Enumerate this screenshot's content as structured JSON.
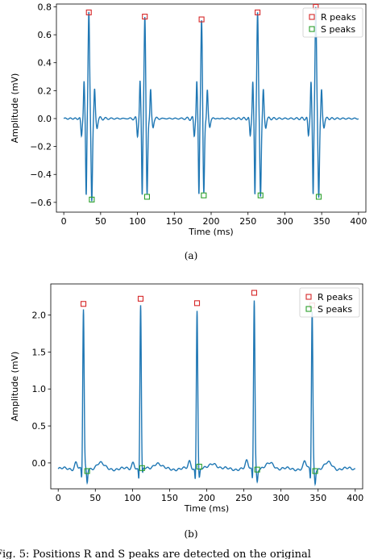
{
  "caption": "Fig. 5: Positions R and S peaks are detected on the original",
  "chart_data": [
    {
      "type": "line",
      "sublabel": "(a)",
      "xlabel": "Time (ms)",
      "ylabel": "Amplitude (mV)",
      "xlim": [
        -10,
        410
      ],
      "ylim": [
        -0.67,
        0.82
      ],
      "xticks": [
        0,
        50,
        100,
        150,
        200,
        250,
        300,
        350,
        400
      ],
      "yticks": [
        -0.6,
        -0.4,
        -0.2,
        0.0,
        0.2,
        0.4,
        0.6,
        0.8
      ],
      "ytick_labels": [
        "−0.6",
        "−0.4",
        "−0.2",
        "0.0",
        "0.2",
        "0.4",
        "0.6",
        "0.8"
      ],
      "legend_position": "top-right",
      "series": [
        {
          "name": "",
          "kind": "line",
          "color": "#1f77b4"
        },
        {
          "name": "R peaks",
          "kind": "marker",
          "color": "#d62728",
          "x": [
            34,
            110,
            187,
            263,
            342
          ],
          "y": [
            0.76,
            0.73,
            0.71,
            0.76,
            0.8
          ]
        },
        {
          "name": "S peaks",
          "kind": "marker",
          "color": "#2ca02c",
          "x": [
            38,
            113,
            190,
            267,
            346
          ],
          "y": [
            -0.58,
            -0.56,
            -0.55,
            -0.55,
            -0.56
          ]
        }
      ],
      "beats": [
        {
          "r_x": 34,
          "r_y": 0.76,
          "s_x": 38,
          "s_y": -0.58
        },
        {
          "r_x": 110,
          "r_y": 0.73,
          "s_x": 113,
          "s_y": -0.56
        },
        {
          "r_x": 187,
          "r_y": 0.71,
          "s_x": 190,
          "s_y": -0.55
        },
        {
          "r_x": 263,
          "r_y": 0.76,
          "s_x": 267,
          "s_y": -0.55
        },
        {
          "r_x": 342,
          "r_y": 0.8,
          "s_x": 346,
          "s_y": -0.56
        }
      ]
    },
    {
      "type": "line",
      "sublabel": "(b)",
      "xlabel": "Time (ms)",
      "ylabel": "Amplitude (mV)",
      "xlim": [
        -10,
        410
      ],
      "ylim": [
        -0.35,
        2.42
      ],
      "xticks": [
        0,
        50,
        100,
        150,
        200,
        250,
        300,
        350,
        400
      ],
      "yticks": [
        0.0,
        0.5,
        1.0,
        1.5,
        2.0
      ],
      "ytick_labels": [
        "0.0",
        "0.5",
        "1.0",
        "1.5",
        "2.0"
      ],
      "legend_position": "top-right",
      "series": [
        {
          "name": "",
          "kind": "line",
          "color": "#1f77b4"
        },
        {
          "name": "R peaks",
          "kind": "marker",
          "color": "#d62728",
          "x": [
            34,
            111,
            187,
            264,
            342
          ],
          "y": [
            2.15,
            2.22,
            2.16,
            2.3,
            2.13
          ]
        },
        {
          "name": "S peaks",
          "kind": "marker",
          "color": "#2ca02c",
          "x": [
            39,
            113,
            190,
            268,
            346
          ],
          "y": [
            -0.11,
            -0.07,
            -0.05,
            -0.09,
            -0.11
          ]
        }
      ],
      "beats": [
        {
          "r_x": 34,
          "r_y": 2.15,
          "s_x": 39,
          "s_y": -0.11
        },
        {
          "r_x": 111,
          "r_y": 2.22,
          "s_x": 113,
          "s_y": -0.07
        },
        {
          "r_x": 187,
          "r_y": 2.16,
          "s_x": 190,
          "s_y": -0.05
        },
        {
          "r_x": 264,
          "r_y": 2.3,
          "s_x": 268,
          "s_y": -0.09
        },
        {
          "r_x": 342,
          "r_y": 2.13,
          "s_x": 346,
          "s_y": -0.11
        }
      ]
    }
  ]
}
